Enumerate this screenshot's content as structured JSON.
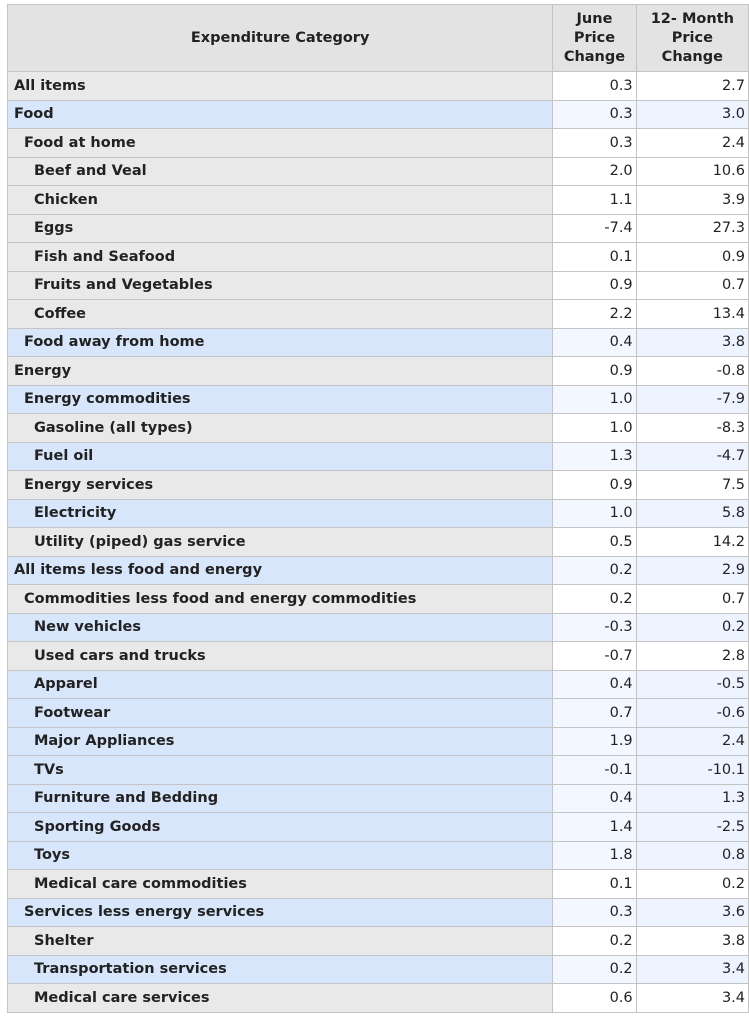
{
  "table": {
    "headers": {
      "category": "Expenditure Category",
      "june": [
        "June",
        "Price",
        "Change"
      ],
      "twelve": [
        "12- Month",
        "Price",
        "Change"
      ]
    },
    "rows": [
      {
        "label": "All items",
        "indent": 0,
        "shade": "gray",
        "june": "0.3",
        "twelve": "2.7"
      },
      {
        "label": "Food",
        "indent": 0,
        "shade": "blue",
        "june": "0.3",
        "twelve": "3.0"
      },
      {
        "label": "Food at home",
        "indent": 1,
        "shade": "gray",
        "june": "0.3",
        "twelve": "2.4"
      },
      {
        "label": "Beef and Veal",
        "indent": 2,
        "shade": "gray",
        "june": "2.0",
        "twelve": "10.6"
      },
      {
        "label": "Chicken",
        "indent": 2,
        "shade": "gray",
        "june": "1.1",
        "twelve": "3.9"
      },
      {
        "label": "Eggs",
        "indent": 2,
        "shade": "gray",
        "june": "-7.4",
        "twelve": "27.3"
      },
      {
        "label": "Fish and Seafood",
        "indent": 2,
        "shade": "gray",
        "june": "0.1",
        "twelve": "0.9"
      },
      {
        "label": "Fruits and Vegetables",
        "indent": 2,
        "shade": "gray",
        "june": "0.9",
        "twelve": "0.7"
      },
      {
        "label": "Coffee",
        "indent": 2,
        "shade": "gray",
        "june": "2.2",
        "twelve": "13.4"
      },
      {
        "label": "Food away from home",
        "indent": 1,
        "shade": "blue",
        "june": "0.4",
        "twelve": "3.8"
      },
      {
        "label": "Energy",
        "indent": 0,
        "shade": "gray",
        "june": "0.9",
        "twelve": "-0.8"
      },
      {
        "label": "Energy commodities",
        "indent": 1,
        "shade": "blue",
        "june": "1.0",
        "twelve": "-7.9"
      },
      {
        "label": "Gasoline (all types)",
        "indent": 2,
        "shade": "gray",
        "june": "1.0",
        "twelve": "-8.3"
      },
      {
        "label": "Fuel oil",
        "indent": 2,
        "shade": "blue",
        "june": "1.3",
        "twelve": "-4.7"
      },
      {
        "label": "Energy services",
        "indent": 1,
        "shade": "gray",
        "june": "0.9",
        "twelve": "7.5"
      },
      {
        "label": "Electricity",
        "indent": 2,
        "shade": "blue",
        "june": "1.0",
        "twelve": "5.8"
      },
      {
        "label": "Utility (piped) gas service",
        "indent": 2,
        "shade": "gray",
        "june": "0.5",
        "twelve": "14.2"
      },
      {
        "label": "All items less food and energy",
        "indent": 0,
        "shade": "blue",
        "june": "0.2",
        "twelve": "2.9"
      },
      {
        "label": "Commodities less food and energy commodities",
        "indent": 1,
        "shade": "gray",
        "june": "0.2",
        "twelve": "0.7"
      },
      {
        "label": "New vehicles",
        "indent": 2,
        "shade": "blue",
        "june": "-0.3",
        "twelve": "0.2"
      },
      {
        "label": "Used cars and trucks",
        "indent": 2,
        "shade": "gray",
        "june": "-0.7",
        "twelve": "2.8"
      },
      {
        "label": "Apparel",
        "indent": 2,
        "shade": "blue",
        "june": "0.4",
        "twelve": "-0.5"
      },
      {
        "label": "Footwear",
        "indent": 2,
        "shade": "blue",
        "june": "0.7",
        "twelve": "-0.6"
      },
      {
        "label": "Major Appliances",
        "indent": 2,
        "shade": "blue",
        "june": "1.9",
        "twelve": "2.4"
      },
      {
        "label": "TVs",
        "indent": 2,
        "shade": "blue",
        "june": "-0.1",
        "twelve": "-10.1"
      },
      {
        "label": "Furniture and Bedding",
        "indent": 2,
        "shade": "blue",
        "june": "0.4",
        "twelve": "1.3"
      },
      {
        "label": "Sporting Goods",
        "indent": 2,
        "shade": "blue",
        "june": "1.4",
        "twelve": "-2.5"
      },
      {
        "label": "Toys",
        "indent": 2,
        "shade": "blue",
        "june": "1.8",
        "twelve": "0.8"
      },
      {
        "label": "Medical care commodities",
        "indent": 2,
        "shade": "gray",
        "june": "0.1",
        "twelve": "0.2"
      },
      {
        "label": "Services less energy services",
        "indent": 1,
        "shade": "blue",
        "june": "0.3",
        "twelve": "3.6"
      },
      {
        "label": "Shelter",
        "indent": 2,
        "shade": "gray",
        "june": "0.2",
        "twelve": "3.8"
      },
      {
        "label": "Transportation services",
        "indent": 2,
        "shade": "blue",
        "june": "0.2",
        "twelve": "3.4"
      },
      {
        "label": "Medical care services",
        "indent": 2,
        "shade": "gray",
        "june": "0.6",
        "twelve": "3.4"
      }
    ]
  }
}
